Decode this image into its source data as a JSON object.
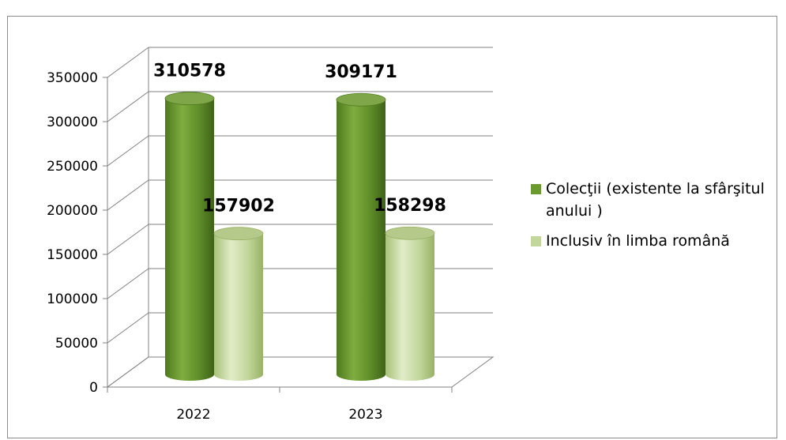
{
  "chart_data": {
    "type": "bar",
    "categories": [
      "2022",
      "2023"
    ],
    "series": [
      {
        "name": "Colecţii (existente la sfârşitul anului )",
        "values": [
          310578,
          309171
        ],
        "color": "#6b9a2f"
      },
      {
        "name": "Inclusiv în limba română",
        "values": [
          157902,
          158298
        ],
        "color": "#c3d69b"
      }
    ],
    "ylim": [
      0,
      350000
    ],
    "yticks": [
      "0",
      "50000",
      "100000",
      "150000",
      "200000",
      "250000",
      "300000",
      "350000"
    ],
    "data_labels": [
      [
        "310578",
        "309171"
      ],
      [
        "157902",
        "158298"
      ]
    ],
    "legend_position": "right",
    "grid": true,
    "style": "3d-cylinder"
  }
}
